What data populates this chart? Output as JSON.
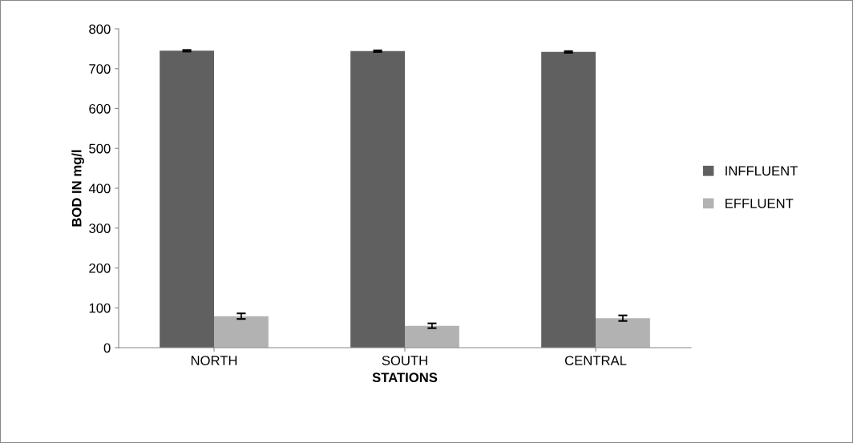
{
  "chart_data": {
    "type": "bar",
    "xlabel": "STATIONS",
    "ylabel": "BOD IN mg/l",
    "categories": [
      "NORTH",
      "SOUTH",
      "CENTRAL"
    ],
    "series": [
      {
        "name": "INFFLUENT",
        "color": "#606060",
        "values": [
          745,
          744,
          742
        ],
        "errors": [
          2,
          2,
          2
        ]
      },
      {
        "name": "EFFLUENT",
        "color": "#b2b2b2",
        "values": [
          79,
          55,
          74
        ],
        "errors": [
          7,
          6,
          7
        ]
      }
    ],
    "ylim": [
      0,
      800
    ],
    "yticks": [
      0,
      100,
      200,
      300,
      400,
      500,
      600,
      700,
      800
    ],
    "grid": false,
    "legend": "right"
  }
}
